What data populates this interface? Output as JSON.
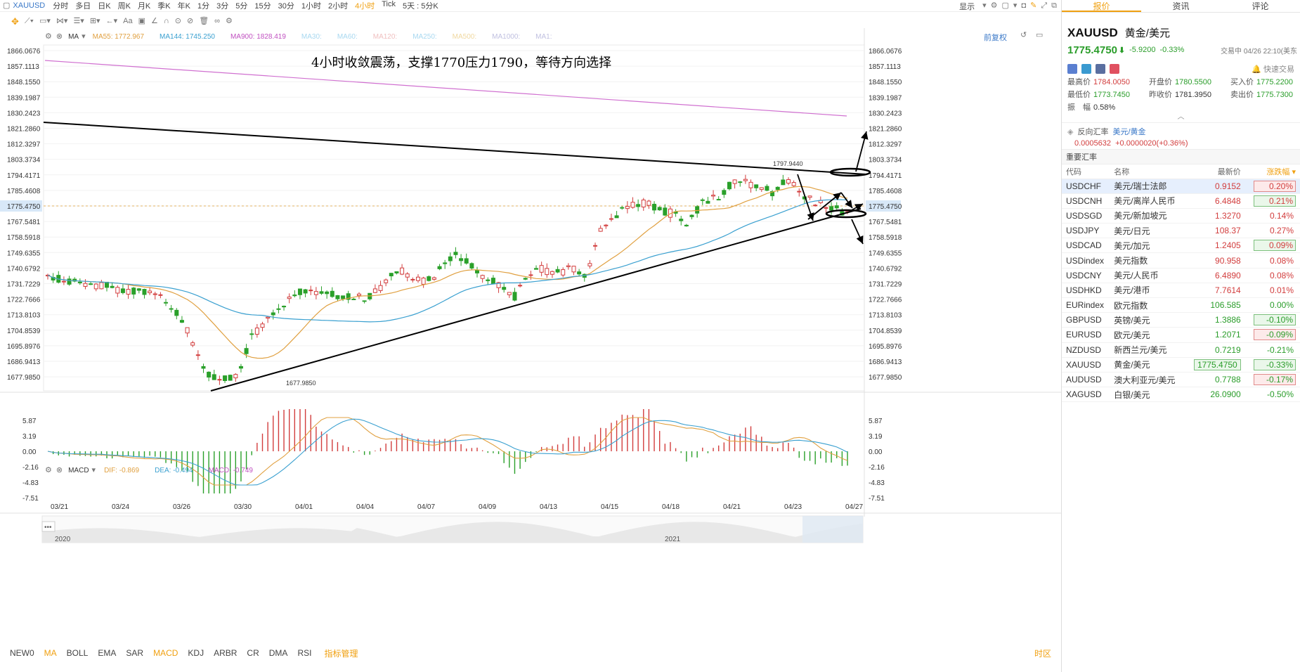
{
  "toolbar": {
    "symbol": "XAUUSD",
    "periods": [
      "分时",
      "多日",
      "日K",
      "周K",
      "月K",
      "季K",
      "年K",
      "1分",
      "3分",
      "5分",
      "15分",
      "30分",
      "1小时",
      "2小时",
      "4小时",
      "Tick",
      "5天 : 5分K"
    ],
    "active_period": "4小时",
    "display_label": "显示"
  },
  "chart": {
    "annotation": "4小时收敛震荡，支撑1770压力1790，等待方向选择",
    "ma_label": "MA",
    "ma_items": [
      {
        "text": "MA55: 1772.967",
        "color": "#e0a040"
      },
      {
        "text": "MA144: 1745.250",
        "color": "#3aa0d0"
      },
      {
        "text": "MA900: 1828.419",
        "color": "#c050c0"
      },
      {
        "text": "MA30:",
        "color": "#a8d8f0"
      },
      {
        "text": "MA60:",
        "color": "#a8d8f0"
      },
      {
        "text": "MA120:",
        "color": "#f0c0c0"
      },
      {
        "text": "MA250:",
        "color": "#a8d8f0"
      },
      {
        "text": "MA500:",
        "color": "#f0d8a0"
      },
      {
        "text": "MA1000:",
        "color": "#c0c0e0"
      },
      {
        "text": "MA1:",
        "color": "#c0c0e0"
      }
    ],
    "restore_label": "前复权",
    "price_ticks": [
      "1866.0676",
      "1857.1113",
      "1848.1550",
      "1839.1987",
      "1830.2423",
      "1821.2860",
      "1812.3297",
      "1803.3734",
      "1794.4171",
      "1785.4608",
      "1775.4750",
      "1767.5481",
      "1758.5918",
      "1749.6355",
      "1740.6792",
      "1731.7229",
      "1722.7666",
      "1713.8103",
      "1704.8539",
      "1695.8976",
      "1686.9413",
      "1677.9850"
    ],
    "current_price": "1775.4750",
    "high_label": "1797.9440",
    "low_label": "1677.9850",
    "macd_label": "MACD",
    "macd_items": [
      {
        "text": "DIF: -0.869",
        "color": "#e0a040"
      },
      {
        "text": "DEA: -0.494",
        "color": "#3aa0d0"
      },
      {
        "text": "MACD: -0.749",
        "color": "#c050c0"
      }
    ],
    "macd_ticks": [
      "5.87",
      "3.19",
      "0.00",
      "-2.16",
      "-4.83",
      "-7.51"
    ],
    "date_ticks": [
      "03/21",
      "03/24",
      "03/26",
      "03/30",
      "04/01",
      "04/04",
      "04/07",
      "04/09",
      "04/13",
      "04/15",
      "04/18",
      "04/21",
      "04/23",
      "04/27"
    ],
    "navigator_years": [
      "2020",
      "2021"
    ],
    "colors": {
      "up": "#d23d3d",
      "down": "#2aa02a",
      "ma55": "#e0a040",
      "ma144": "#3aa0d0",
      "ma900": "#d070d0",
      "annotation": "#000000"
    }
  },
  "chart_data": {
    "type": "candlestick",
    "title": "4小时收敛震荡，支撑1770压力1790，等待方向选择",
    "instrument": "XAUUSD",
    "interval": "4小时",
    "y_range": [
      1677.985,
      1866.0676
    ],
    "x": [
      "03/21",
      "03/24",
      "03/26",
      "03/30",
      "04/01",
      "04/04",
      "04/07",
      "04/09",
      "04/13",
      "04/15",
      "04/18",
      "04/21",
      "04/23",
      "04/27"
    ],
    "price_path": [
      1739,
      1738,
      1736,
      1733,
      1735,
      1730,
      1732,
      1730,
      1727,
      1718,
      1702,
      1684,
      1681,
      1682,
      1706,
      1714,
      1722,
      1731,
      1732,
      1730,
      1729,
      1728,
      1727,
      1734,
      1743,
      1740,
      1736,
      1743,
      1752,
      1746,
      1740,
      1735,
      1727,
      1738,
      1744,
      1741,
      1745,
      1740,
      1764,
      1773,
      1779,
      1781,
      1777,
      1775,
      1770,
      1781,
      1784,
      1792,
      1793,
      1789,
      1787,
      1795,
      1784,
      1781,
      1779,
      1775
    ],
    "series": [
      {
        "name": "MA55",
        "last": 1772.967
      },
      {
        "name": "MA144",
        "last": 1745.25
      },
      {
        "name": "MA900",
        "last": 1828.419
      }
    ],
    "annotations": {
      "high": 1797.944,
      "low": 1677.985,
      "current": 1775.475,
      "support": 1770,
      "resistance": 1790
    },
    "macd": {
      "dif": -0.869,
      "dea": -0.494,
      "macd": -0.749,
      "y_range": [
        -7.51,
        5.87
      ]
    }
  },
  "bottom": {
    "indicators": [
      "NEW0",
      "MA",
      "BOLL",
      "EMA",
      "SAR",
      "MACD",
      "KDJ",
      "ARBR",
      "CR",
      "DMA",
      "RSI"
    ],
    "active": [
      "MA",
      "MACD"
    ],
    "manage_label": "指标管理",
    "timezone_label": "时区"
  },
  "right": {
    "tabs": [
      "报价",
      "资讯",
      "评论"
    ],
    "active_tab": "报价",
    "symbol": "XAUUSD",
    "name": "黄金/美元",
    "price": "1775.4750",
    "change": "-5.9200",
    "pct": "-0.33%",
    "status": "交易中 04/26 22:10(美东",
    "quick_trade": "快速交易",
    "quotes": [
      {
        "label": "最高价",
        "value": "1784.0050",
        "color": "up"
      },
      {
        "label": "开盘价",
        "value": "1780.5500",
        "color": "dn"
      },
      {
        "label": "买入价",
        "value": "1775.2200",
        "color": "dn"
      },
      {
        "label": "最低价",
        "value": "1773.7450",
        "color": "dn"
      },
      {
        "label": "昨收价",
        "value": "1781.3950",
        "color": ""
      },
      {
        "label": "卖出价",
        "value": "1775.7300",
        "color": "dn"
      },
      {
        "label": "振　幅",
        "value": "0.58%",
        "color": ""
      }
    ],
    "reverse_label": "反向汇率",
    "reverse_pair": "美元/黄金",
    "reverse_value": "0.0005632",
    "reverse_change": "+0.0000020(+0.36%)",
    "important_label": "重要汇率",
    "table_headers": [
      "代码",
      "名称",
      "最新价",
      "涨跌幅"
    ],
    "rates": [
      {
        "code": "USDCHF",
        "name": "美元/瑞士法郎",
        "last": "0.9152",
        "chg": "0.20%",
        "dir": "up",
        "box": "up",
        "sel": true
      },
      {
        "code": "USDCNH",
        "name": "美元/离岸人民币",
        "last": "6.4848",
        "chg": "0.21%",
        "dir": "up",
        "box": "dn",
        "sel": false
      },
      {
        "code": "USDSGD",
        "name": "美元/新加坡元",
        "last": "1.3270",
        "chg": "0.14%",
        "dir": "up",
        "box": "",
        "sel": false
      },
      {
        "code": "USDJPY",
        "name": "美元/日元",
        "last": "108.37",
        "chg": "0.27%",
        "dir": "up",
        "box": "",
        "sel": false
      },
      {
        "code": "USDCAD",
        "name": "美元/加元",
        "last": "1.2405",
        "chg": "0.09%",
        "dir": "up",
        "box": "dn",
        "sel": false
      },
      {
        "code": "USDindex",
        "name": "美元指数",
        "last": "90.958",
        "chg": "0.08%",
        "dir": "up",
        "box": "",
        "sel": false
      },
      {
        "code": "USDCNY",
        "name": "美元/人民币",
        "last": "6.4890",
        "chg": "0.08%",
        "dir": "up",
        "box": "",
        "sel": false
      },
      {
        "code": "USDHKD",
        "name": "美元/港币",
        "last": "7.7614",
        "chg": "0.01%",
        "dir": "up",
        "box": "",
        "sel": false
      },
      {
        "code": "EURindex",
        "name": "欧元指数",
        "last": "106.585",
        "chg": "0.00%",
        "dir": "dn",
        "box": "",
        "sel": false
      },
      {
        "code": "GBPUSD",
        "name": "英镑/美元",
        "last": "1.3886",
        "chg": "-0.10%",
        "dir": "dn",
        "box": "dn",
        "sel": false
      },
      {
        "code": "EURUSD",
        "name": "欧元/美元",
        "last": "1.2071",
        "chg": "-0.09%",
        "dir": "dn",
        "box": "up",
        "sel": false
      },
      {
        "code": "NZDUSD",
        "name": "新西兰元/美元",
        "last": "0.7219",
        "chg": "-0.21%",
        "dir": "dn",
        "box": "",
        "sel": false
      },
      {
        "code": "XAUUSD",
        "name": "黄金/美元",
        "last": "1775.4750",
        "chg": "-0.33%",
        "dir": "dn",
        "box": "dn",
        "sel": false
      },
      {
        "code": "AUDUSD",
        "name": "澳大利亚元/美元",
        "last": "0.7788",
        "chg": "-0.17%",
        "dir": "dn",
        "box": "up",
        "sel": false
      },
      {
        "code": "XAGUSD",
        "name": "白银/美元",
        "last": "26.0900",
        "chg": "-0.50%",
        "dir": "dn",
        "box": "",
        "sel": false
      }
    ]
  }
}
